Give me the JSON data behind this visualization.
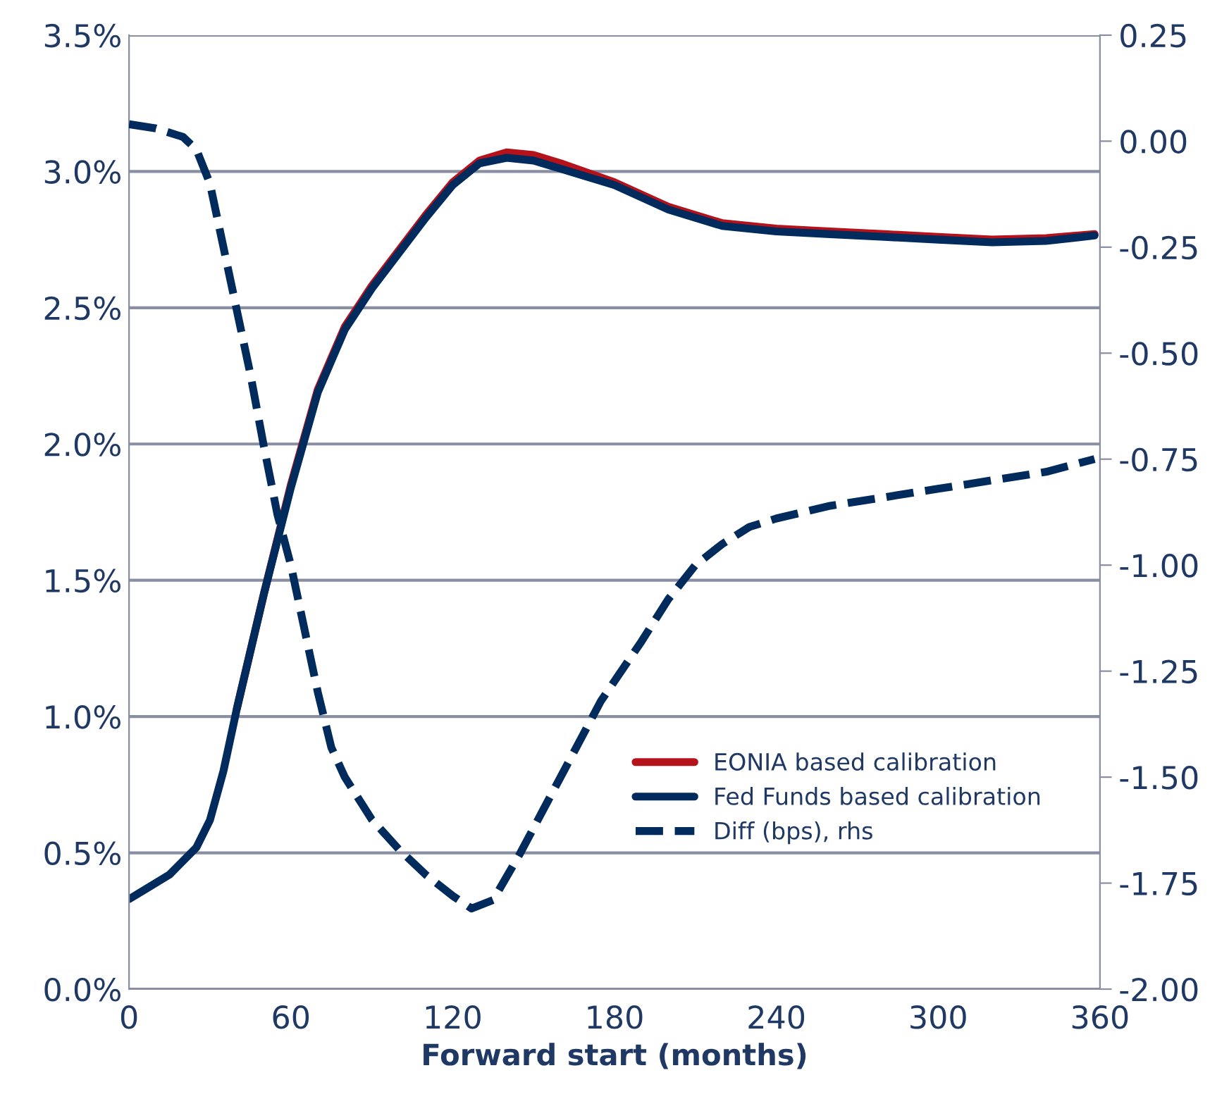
{
  "chart_data": {
    "type": "line",
    "xlabel": "Forward start (months)",
    "xlim": [
      0,
      360
    ],
    "xticks": [
      0,
      60,
      120,
      180,
      240,
      300,
      360
    ],
    "ylim": [
      0,
      3.5
    ],
    "yticks": [
      {
        "value": 0,
        "label": "0.0%"
      },
      {
        "value": 0.5,
        "label": "0.5%"
      },
      {
        "value": 1,
        "label": "1.0%"
      },
      {
        "value": 1.5,
        "label": "1.5%"
      },
      {
        "value": 2,
        "label": "2.0%"
      },
      {
        "value": 2.5,
        "label": "2.5%"
      },
      {
        "value": 3,
        "label": "3.0%"
      },
      {
        "value": 3.5,
        "label": "3.5%"
      }
    ],
    "y2lim": [
      -2,
      0.25
    ],
    "y2ticks": [
      {
        "value": -2,
        "label": "-2.00"
      },
      {
        "value": -1.75,
        "label": "-1.75"
      },
      {
        "value": -1.5,
        "label": "-1.50"
      },
      {
        "value": -1.25,
        "label": "-1.25"
      },
      {
        "value": -1,
        "label": "-1.00"
      },
      {
        "value": -0.75,
        "label": "-0.75"
      },
      {
        "value": -0.5,
        "label": "-0.50"
      },
      {
        "value": -0.25,
        "label": "-0.25"
      },
      {
        "value": 0,
        "label": "0.00"
      },
      {
        "value": 0.25,
        "label": "0.25"
      }
    ],
    "grid": "y",
    "legend": "right",
    "line_style": "solid",
    "marker": "none",
    "series": [
      {
        "name": "EONIA based calibration",
        "color": "#b5121b",
        "x": [
          40,
          50,
          60,
          70,
          80,
          90,
          100,
          110,
          120,
          130,
          140,
          150,
          160,
          180,
          200,
          220,
          240,
          260,
          280,
          300,
          320,
          340,
          358
        ],
        "values": [
          1.03,
          1.45,
          1.85,
          2.2,
          2.43,
          2.58,
          2.71,
          2.84,
          2.96,
          3.04,
          3.07,
          3.06,
          3.03,
          2.96,
          2.87,
          2.81,
          2.79,
          2.78,
          2.77,
          2.76,
          2.75,
          2.755,
          2.77
        ]
      },
      {
        "name": "Fed Funds based calibration",
        "color": "#002b5c",
        "x": [
          0,
          5,
          15,
          25,
          30,
          35,
          40,
          50,
          60,
          70,
          80,
          90,
          100,
          110,
          120,
          130,
          140,
          150,
          160,
          180,
          200,
          220,
          240,
          260,
          280,
          300,
          320,
          340,
          358
        ],
        "values": [
          0.33,
          0.36,
          0.42,
          0.52,
          0.62,
          0.8,
          1.03,
          1.45,
          1.84,
          2.19,
          2.42,
          2.57,
          2.7,
          2.83,
          2.95,
          3.03,
          3.05,
          3.04,
          3.01,
          2.95,
          2.86,
          2.8,
          2.78,
          2.77,
          2.76,
          2.75,
          2.74,
          2.745,
          2.765
        ]
      },
      {
        "name": "Diff (bps), rhs",
        "color": "#002b5c",
        "axis": "y2",
        "line_style": "dashed",
        "x": [
          0,
          10,
          20,
          25,
          30,
          40,
          45,
          50,
          55,
          60,
          65,
          70,
          75,
          80,
          90,
          100,
          110,
          120,
          127,
          135,
          145,
          160,
          175,
          190,
          200,
          210,
          220,
          230,
          240,
          260,
          280,
          300,
          320,
          340,
          358
        ],
        "values": [
          0.04,
          0.03,
          0.01,
          -0.02,
          -0.1,
          -0.4,
          -0.55,
          -0.72,
          -0.88,
          -1.0,
          -1.15,
          -1.3,
          -1.43,
          -1.5,
          -1.6,
          -1.67,
          -1.73,
          -1.78,
          -1.81,
          -1.79,
          -1.68,
          -1.5,
          -1.32,
          -1.18,
          -1.08,
          -1.0,
          -0.95,
          -0.91,
          -0.89,
          -0.86,
          -0.84,
          -0.82,
          -0.8,
          -0.78,
          -0.75
        ]
      }
    ]
  }
}
